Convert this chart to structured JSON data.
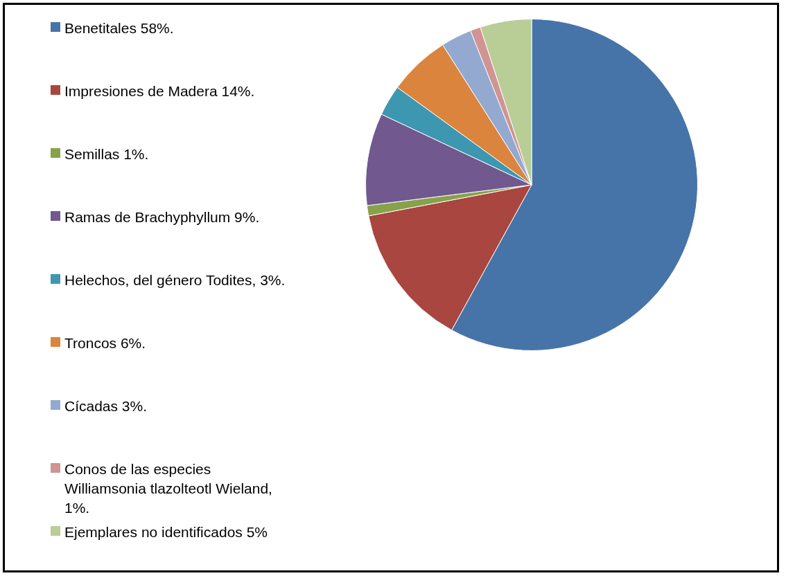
{
  "chart_data": {
    "type": "pie",
    "categories": [
      "Benetitales 58%.",
      "Impresiones de Madera 14%.",
      "Semillas 1%.",
      "Ramas de Brachyphyllum 9%.",
      "Helechos, del género Todites, 3%.",
      "Troncos 6%.",
      "Cícadas 3%.",
      "Conos de las especies Williamsonia tlazolteotl Wieland, 1%.",
      "Ejemplares no identificados 5%"
    ],
    "values": [
      58,
      14,
      1,
      9,
      3,
      6,
      3,
      1,
      5
    ],
    "colors": [
      "#4674a8",
      "#a8463f",
      "#87a24b",
      "#71588f",
      "#3e97b0",
      "#db843d",
      "#93a9cf",
      "#d09492",
      "#b9cd96"
    ],
    "legend": "left"
  }
}
